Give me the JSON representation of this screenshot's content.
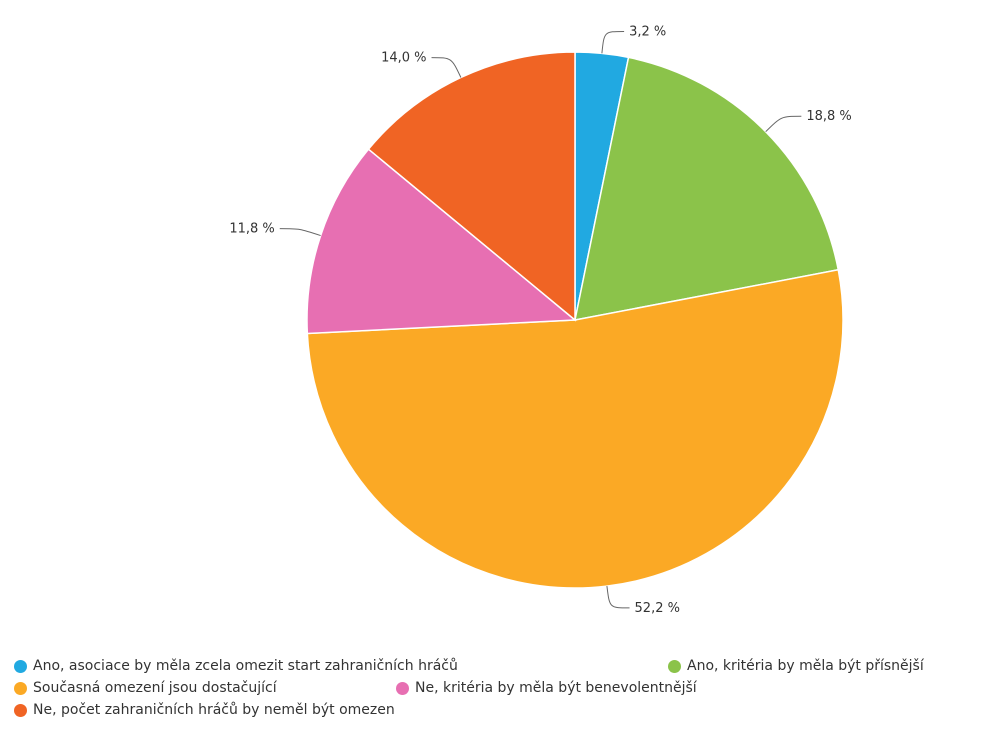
{
  "chart_data": {
    "type": "pie",
    "series": [
      {
        "name": "Ano, asociace by měla zcela omezit start zahraničních hráčů",
        "value": 3.2,
        "label": "3,2 %",
        "color": "#21a9e1"
      },
      {
        "name": "Ano, kritéria by měla být přísnější",
        "value": 18.8,
        "label": "18,8 %",
        "color": "#8bc34a"
      },
      {
        "name": "Současná omezení jsou dostačující",
        "value": 52.2,
        "label": "52,2 %",
        "color": "#fba925"
      },
      {
        "name": "Ne, kritéria by měla být benevolentnější",
        "value": 11.8,
        "label": "11,8 %",
        "color": "#e76fb2"
      },
      {
        "name": "Ne, počet zahraničních hráčů by neměl být omezen",
        "value": 14.0,
        "label": "14,0 %",
        "color": "#f06424"
      }
    ],
    "legend_position": "bottom",
    "start_angle": "top",
    "direction": "clockwise"
  }
}
